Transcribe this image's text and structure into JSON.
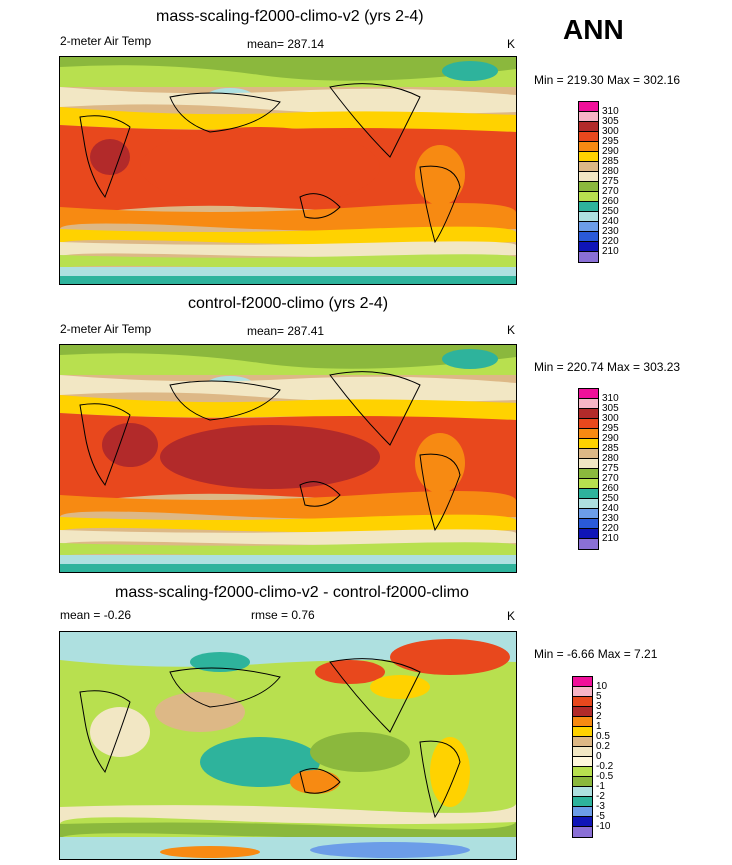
{
  "season": "ANN",
  "panels": [
    {
      "title": "mass-scaling-f2000-climo-v2 (yrs 2-4)",
      "left_label": "2-meter Air Temp",
      "center_label": "mean= 287.14",
      "unit": "K",
      "minmax": "Min = 219.30 Max = 302.16",
      "levels": [
        "310",
        "305",
        "300",
        "295",
        "290",
        "285",
        "280",
        "275",
        "270",
        "260",
        "250",
        "240",
        "230",
        "220",
        "210"
      ],
      "colors": [
        "#f0109a",
        "#f7b5c6",
        "#b22a2a",
        "#e8481d",
        "#f78a12",
        "#ffd200",
        "#ddb886",
        "#f2e7c4",
        "#8bb83d",
        "#b8e04f",
        "#2eb39c",
        "#aee0e0",
        "#6c9de8",
        "#2a5ad8",
        "#0f15b7",
        "#8a70d6"
      ]
    },
    {
      "title": "control-f2000-climo (yrs 2-4)",
      "left_label": "2-meter Air Temp",
      "center_label": "mean= 287.41",
      "unit": "K",
      "minmax": "Min = 220.74 Max = 303.23",
      "levels": [
        "310",
        "305",
        "300",
        "295",
        "290",
        "285",
        "280",
        "275",
        "270",
        "260",
        "250",
        "240",
        "230",
        "220",
        "210"
      ],
      "colors": [
        "#f0109a",
        "#f7b5c6",
        "#b22a2a",
        "#e8481d",
        "#f78a12",
        "#ffd200",
        "#ddb886",
        "#f2e7c4",
        "#8bb83d",
        "#b8e04f",
        "#2eb39c",
        "#aee0e0",
        "#6c9de8",
        "#2a5ad8",
        "#0f15b7",
        "#8a70d6"
      ]
    },
    {
      "title": "mass-scaling-f2000-climo-v2 - control-f2000-climo",
      "left_label": "mean =  -0.26",
      "center_label": "rmse =   0.76",
      "unit": "K",
      "minmax": "Min =  -6.66 Max =   7.21",
      "levels": [
        "10",
        "5",
        "3",
        "2",
        "1",
        "0.5",
        "0.2",
        "0",
        "-0.2",
        "-0.5",
        "-1",
        "-2",
        "-3",
        "-5",
        "-10"
      ],
      "colors": [
        "#f0109a",
        "#f7b5c6",
        "#e8481d",
        "#b22a2a",
        "#f78a12",
        "#ffd200",
        "#ddb886",
        "#f2e7c4",
        "#fff7dc",
        "#b8e04f",
        "#8bb83d",
        "#aee0e0",
        "#2eb39c",
        "#6c9de8",
        "#0f15b7",
        "#8a70d6"
      ]
    }
  ]
}
